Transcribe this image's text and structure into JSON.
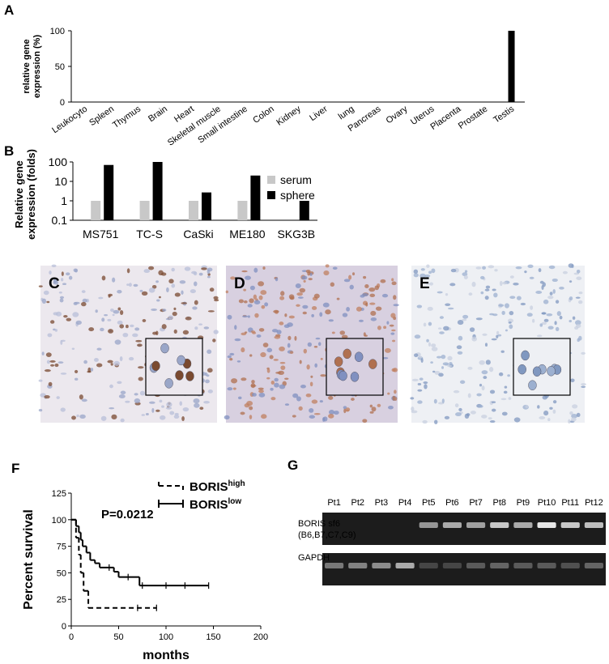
{
  "chart_data": [
    {
      "type": "bar",
      "panel": "A",
      "ylabel": [
        "relative gene",
        "expression (%)"
      ],
      "categories": [
        "Leukocyto",
        "Spleen",
        "Thymus",
        "Brain",
        "Heart",
        "Skeletal muscle",
        "Small intestine",
        "Colon",
        "Kidney",
        "Liver",
        "lung",
        "Pancreas",
        "Ovary",
        "Uterus",
        "Placenta",
        "Prostate",
        "Testis"
      ],
      "values": [
        0,
        0,
        0,
        0,
        0,
        0,
        0,
        0,
        0,
        0,
        0,
        0,
        0,
        0,
        0.5,
        0,
        100
      ],
      "color": "#000000",
      "ylim": [
        0,
        100
      ],
      "yticks": [
        0,
        50,
        100
      ]
    },
    {
      "type": "bar",
      "panel": "B",
      "log_scale": true,
      "legend": "top-right",
      "ylabel": [
        "Relative gene",
        "expression (folds)"
      ],
      "categories": [
        "MS751",
        "TC-S",
        "CaSki",
        "ME180",
        "SKG3B"
      ],
      "series": [
        {
          "name": "serum",
          "color": "#c8c8c8",
          "values": [
            1,
            1,
            1,
            1,
            null
          ]
        },
        {
          "name": "sphere",
          "color": "#000000",
          "values": [
            70,
            100,
            2.7,
            20,
            1
          ]
        }
      ],
      "ylim": [
        0.1,
        100
      ],
      "yticks": [
        0.1,
        1,
        10,
        100
      ]
    },
    {
      "type": "step",
      "panel": "F",
      "ylabel": "Percent survival",
      "xlabel": "months",
      "annotation": "P=0.0212",
      "series": [
        {
          "name": "BORIS",
          "superscript": "high",
          "color": "#000000",
          "line_style": "dashed",
          "x": [
            0,
            5,
            8,
            10,
            13,
            18,
            90
          ],
          "values": [
            100,
            83,
            67,
            50,
            33,
            17,
            17
          ],
          "censored": {
            "x": [
              70,
              90
            ],
            "values": [
              17,
              17
            ]
          }
        },
        {
          "name": "BORIS",
          "superscript": "low",
          "color": "#000000",
          "line_style": "solid",
          "x": [
            0,
            5,
            8,
            10,
            12,
            16,
            20,
            25,
            30,
            45,
            50,
            72,
            145
          ],
          "values": [
            100,
            94,
            88,
            81,
            75,
            69,
            62,
            59,
            55,
            51,
            46,
            38,
            38
          ],
          "censored": {
            "x": [
              40,
              60,
              75,
              100,
              120,
              145
            ],
            "values": [
              55,
              46,
              38,
              38,
              38,
              38
            ]
          }
        }
      ],
      "xlim": [
        0,
        200
      ],
      "xticks": [
        0,
        50,
        100,
        150,
        200
      ],
      "ylim": [
        0,
        125
      ],
      "yticks": [
        0,
        25,
        50,
        75,
        100,
        125
      ]
    }
  ],
  "images": [
    {
      "label": "C"
    },
    {
      "label": "D"
    },
    {
      "label": "E"
    }
  ],
  "gel": {
    "panel": "G",
    "lanes": [
      "Pt1",
      "Pt2",
      "Pt3",
      "Pt4",
      "Pt5",
      "Pt6",
      "Pt7",
      "Pt8",
      "Pt9",
      "Pt10",
      "Pt11",
      "Pt12"
    ],
    "row_labels": [
      "BORIS sf6",
      "(B6,B7,C7,C9)",
      "GAPDH"
    ]
  }
}
